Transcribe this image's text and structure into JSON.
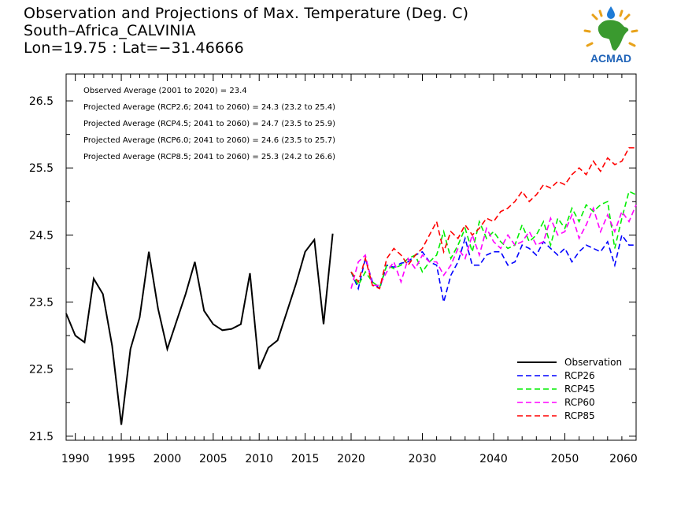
{
  "header": {
    "title": "Observation and Projections of Max. Temperature (Deg. C)",
    "location": "South–Africa_CALVINIA",
    "coords": "Lon=19.75 : Lat=−31.46666"
  },
  "logo": {
    "text": "ACMAD",
    "icon": "africa-map-logo-icon"
  },
  "chart_data": {
    "type": "line",
    "title": "Observation and Projections of Max. Temperature (Deg. C)",
    "xlabel": "",
    "ylabel": "",
    "ylim": [
      21.44,
      26.9
    ],
    "y_ticks": [
      21.5,
      22.5,
      23.5,
      24.5,
      25.5,
      26.5
    ],
    "y_tick_labels": [
      "21.5",
      "22.5",
      "23.5",
      "24.5",
      "25.5",
      "26.5"
    ],
    "x_tick_labels_obs": [
      "1990",
      "1995",
      "2000",
      "2005",
      "2010",
      "2015",
      "2020"
    ],
    "x_tick_labels_proj": [
      "2030",
      "2040",
      "2050",
      "2060"
    ],
    "grid": false,
    "legend_position": "bottom-right",
    "annotations": [
      "Observed Average (2001 to 2020) = 23.4",
      "Projected Average (RCP2.6; 2041 to 2060) = 24.3 (23.2 to 25.4)",
      "Projected Average (RCP4.5; 2041 to 2060) = 24.7 (23.5 to 25.9)",
      "Projected Average (RCP6.0; 2041 to 2060) = 24.6 (23.5 to 25.7)",
      "Projected Average (RCP8.5; 2041 to 2060) = 25.3 (24.2 to 26.6)"
    ],
    "series": [
      {
        "name": "Observation",
        "color": "#000000",
        "dash": "solid",
        "x": [
          1989,
          1990,
          1991,
          1992,
          1993,
          1994,
          1995,
          1996,
          1997,
          1998,
          1999,
          2000,
          2001,
          2002,
          2003,
          2004,
          2005,
          2006,
          2007,
          2008,
          2009,
          2010,
          2011,
          2012,
          2013,
          2014,
          2015,
          2016,
          2017,
          2018,
          2019
        ],
        "values": [
          23.33,
          23.0,
          22.9,
          23.85,
          23.62,
          22.85,
          21.67,
          22.8,
          23.27,
          24.25,
          23.4,
          22.8,
          23.21,
          23.62,
          24.1,
          23.37,
          23.17,
          23.08,
          23.1,
          23.17,
          23.93,
          22.5,
          22.82,
          22.93,
          23.35,
          23.77,
          24.25,
          24.43,
          23.17,
          24.52,
          null
        ]
      },
      {
        "name": "RCP26",
        "color": "#0000ff",
        "dash": "dashed",
        "x": [
          2020,
          2021,
          2022,
          2023,
          2024,
          2025,
          2026,
          2027,
          2028,
          2029,
          2030,
          2031,
          2032,
          2033,
          2034,
          2035,
          2036,
          2037,
          2038,
          2039,
          2040,
          2041,
          2042,
          2043,
          2044,
          2045,
          2046,
          2047,
          2048,
          2049,
          2050,
          2051,
          2052,
          2053,
          2054,
          2055,
          2056,
          2057,
          2058,
          2059,
          2060
        ],
        "values": [
          23.95,
          23.7,
          24.15,
          23.8,
          23.7,
          24.05,
          24.02,
          24.08,
          24.1,
          24.2,
          24.25,
          24.1,
          24.05,
          23.5,
          23.9,
          24.1,
          24.45,
          24.05,
          24.05,
          24.2,
          24.25,
          24.25,
          24.05,
          24.1,
          24.35,
          24.3,
          24.2,
          24.4,
          24.3,
          24.2,
          24.3,
          24.1,
          24.25,
          24.35,
          24.3,
          24.25,
          24.4,
          24.05,
          24.5,
          24.35,
          24.35
        ]
      },
      {
        "name": "RCP45",
        "color": "#00ee00",
        "dash": "dashed",
        "x": [
          2020,
          2021,
          2022,
          2023,
          2024,
          2025,
          2026,
          2027,
          2028,
          2029,
          2030,
          2031,
          2032,
          2033,
          2034,
          2035,
          2036,
          2037,
          2038,
          2039,
          2040,
          2041,
          2042,
          2043,
          2044,
          2045,
          2046,
          2047,
          2048,
          2049,
          2050,
          2051,
          2052,
          2053,
          2054,
          2055,
          2056,
          2057,
          2058,
          2059,
          2060
        ],
        "values": [
          23.95,
          23.75,
          23.95,
          23.8,
          23.72,
          24.05,
          24.0,
          24.05,
          24.15,
          24.2,
          23.95,
          24.1,
          24.2,
          24.55,
          24.15,
          24.35,
          24.6,
          24.25,
          24.7,
          24.45,
          24.55,
          24.4,
          24.3,
          24.35,
          24.65,
          24.4,
          24.5,
          24.7,
          24.35,
          24.75,
          24.6,
          24.9,
          24.7,
          24.95,
          24.85,
          24.95,
          25.0,
          24.3,
          24.75,
          25.15,
          25.1
        ]
      },
      {
        "name": "RCP60",
        "color": "#ff00ff",
        "dash": "dashed",
        "x": [
          2020,
          2021,
          2022,
          2023,
          2024,
          2025,
          2026,
          2027,
          2028,
          2029,
          2030,
          2031,
          2032,
          2033,
          2034,
          2035,
          2036,
          2037,
          2038,
          2039,
          2040,
          2041,
          2042,
          2043,
          2044,
          2045,
          2046,
          2047,
          2048,
          2049,
          2050,
          2051,
          2052,
          2053,
          2054,
          2055,
          2056,
          2057,
          2058,
          2059,
          2060
        ],
        "values": [
          23.7,
          24.1,
          24.2,
          23.75,
          23.75,
          23.95,
          24.1,
          23.8,
          24.15,
          24.0,
          24.2,
          24.1,
          24.1,
          23.9,
          24.05,
          24.3,
          24.15,
          24.5,
          24.2,
          24.6,
          24.4,
          24.3,
          24.5,
          24.35,
          24.4,
          24.55,
          24.35,
          24.4,
          24.75,
          24.5,
          24.55,
          24.8,
          24.45,
          24.65,
          24.9,
          24.55,
          24.8,
          24.55,
          24.85,
          24.7,
          24.95
        ]
      },
      {
        "name": "RCP85",
        "color": "#ff0000",
        "dash": "dashed",
        "x": [
          2020,
          2021,
          2022,
          2023,
          2024,
          2025,
          2026,
          2027,
          2028,
          2029,
          2030,
          2031,
          2032,
          2033,
          2034,
          2035,
          2036,
          2037,
          2038,
          2039,
          2040,
          2041,
          2042,
          2043,
          2044,
          2045,
          2046,
          2047,
          2048,
          2049,
          2050,
          2051,
          2052,
          2053,
          2054,
          2055,
          2056,
          2057,
          2058,
          2059,
          2060
        ],
        "values": [
          23.95,
          23.8,
          24.15,
          23.75,
          23.7,
          24.15,
          24.3,
          24.2,
          24.05,
          24.2,
          24.3,
          24.5,
          24.7,
          24.25,
          24.55,
          24.45,
          24.65,
          24.5,
          24.6,
          24.75,
          24.7,
          24.85,
          24.9,
          25.0,
          25.15,
          25.0,
          25.1,
          25.25,
          25.2,
          25.3,
          25.25,
          25.4,
          25.5,
          25.4,
          25.6,
          25.45,
          25.65,
          25.55,
          25.6,
          25.8,
          25.8
        ]
      }
    ]
  }
}
